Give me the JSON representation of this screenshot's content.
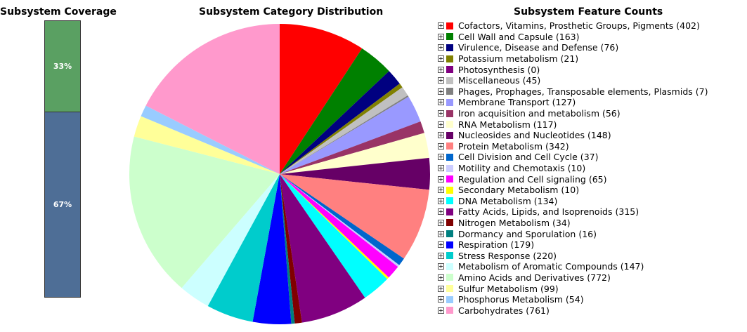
{
  "coverage": {
    "title": "Subsystem Coverage",
    "segments": [
      {
        "label": "33%",
        "value": 33,
        "color": "#5aa062"
      },
      {
        "label": "67%",
        "value": 67,
        "color": "#4e6e96"
      }
    ]
  },
  "pie": {
    "title": "Subsystem Category Distribution"
  },
  "legend": {
    "title": "Subsystem Feature Counts"
  },
  "chart_data": {
    "type": "pie",
    "title": "Subsystem Category Distribution",
    "slices": [
      {
        "name": "Cofactors, Vitamins, Prosthetic Groups, Pigments",
        "value": 402,
        "color": "#ff0000"
      },
      {
        "name": "Cell Wall and Capsule",
        "value": 163,
        "color": "#008000"
      },
      {
        "name": "Virulence, Disease and Defense",
        "value": 76,
        "color": "#000080"
      },
      {
        "name": "Potassium metabolism",
        "value": 21,
        "color": "#808000"
      },
      {
        "name": "Photosynthesis",
        "value": 0,
        "color": "#800080"
      },
      {
        "name": "Miscellaneous",
        "value": 45,
        "color": "#c0c0c0"
      },
      {
        "name": "Phages, Prophages, Transposable elements, Plasmids",
        "value": 7,
        "color": "#808080"
      },
      {
        "name": "Membrane Transport",
        "value": 127,
        "color": "#9999ff"
      },
      {
        "name": "Iron acquisition and metabolism",
        "value": 56,
        "color": "#993366"
      },
      {
        "name": "RNA Metabolism",
        "value": 117,
        "color": "#ffffcc"
      },
      {
        "name": "Nucleosides and Nucleotides",
        "value": 148,
        "color": "#660066"
      },
      {
        "name": "Protein Metabolism",
        "value": 342,
        "color": "#ff8080"
      },
      {
        "name": "Cell Division and Cell Cycle",
        "value": 37,
        "color": "#0066cc"
      },
      {
        "name": "Motility and Chemotaxis",
        "value": 10,
        "color": "#ccccff"
      },
      {
        "name": "Regulation and Cell signaling",
        "value": 65,
        "color": "#ff00ff"
      },
      {
        "name": "Secondary Metabolism",
        "value": 10,
        "color": "#ffff00"
      },
      {
        "name": "DNA Metabolism",
        "value": 134,
        "color": "#00ffff"
      },
      {
        "name": "Fatty Acids, Lipids, and Isoprenoids",
        "value": 315,
        "color": "#800080"
      },
      {
        "name": "Nitrogen Metabolism",
        "value": 34,
        "color": "#800000"
      },
      {
        "name": "Dormancy and Sporulation",
        "value": 16,
        "color": "#008080"
      },
      {
        "name": "Respiration",
        "value": 179,
        "color": "#0000ff"
      },
      {
        "name": "Stress Response",
        "value": 220,
        "color": "#00cccc"
      },
      {
        "name": "Metabolism of Aromatic Compounds",
        "value": 147,
        "color": "#ccffff"
      },
      {
        "name": "Amino Acids and Derivatives",
        "value": 772,
        "color": "#ccffcc"
      },
      {
        "name": "Sulfur Metabolism",
        "value": 99,
        "color": "#ffff99"
      },
      {
        "name": "Phosphorus Metabolism",
        "value": 54,
        "color": "#99ccff"
      },
      {
        "name": "Carbohydrates",
        "value": 761,
        "color": "#ff99cc"
      }
    ]
  }
}
